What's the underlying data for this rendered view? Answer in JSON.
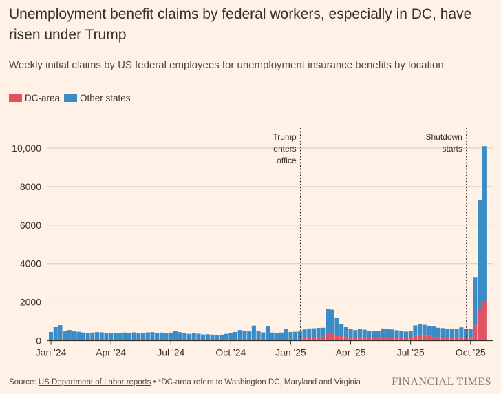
{
  "title": "Unemployment benefit claims by federal workers, especially in DC, have risen under Trump",
  "subtitle": "Weekly initial claims by US federal employees for unemployment insurance benefits by location",
  "legend": [
    {
      "label": "DC-area",
      "color": "#e3535f"
    },
    {
      "label": "Other states",
      "color": "#3a8bc6"
    }
  ],
  "footer": {
    "source_label": "Source: ",
    "source_link": "US Department of Labor reports",
    "note": " • *DC-area refers to Washington DC, Maryland and Virginia",
    "brand": "FINANCIAL TIMES"
  },
  "colors": {
    "dc": "#e3535f",
    "other": "#3a8bc6",
    "grid": "#d6cbbf",
    "axis": "#33302e",
    "text": "#33302e"
  },
  "chart_data": {
    "type": "bar",
    "stacked": true,
    "title": "Weekly initial claims by US federal employees for unemployment insurance benefits by location",
    "xlabel": "",
    "ylabel": "",
    "ylim": [
      0,
      10500
    ],
    "y_ticks": [
      0,
      2000,
      4000,
      6000,
      8000,
      10000
    ],
    "y_tick_labels": [
      "0",
      "2000",
      "4000",
      "6000",
      "8000",
      "10,000"
    ],
    "x_ticks": [
      {
        "label": "Jan '24",
        "week_index": 0
      },
      {
        "label": "Apr '24",
        "week_index": 13
      },
      {
        "label": "Jul '24",
        "week_index": 26
      },
      {
        "label": "Oct '24",
        "week_index": 39
      },
      {
        "label": "Jan '25",
        "week_index": 52
      },
      {
        "label": "Apr '25",
        "week_index": 65
      },
      {
        "label": "Jul '25",
        "week_index": 78
      },
      {
        "label": "Oct '25",
        "week_index": 91
      }
    ],
    "annotations": [
      {
        "lines": [
          "Trump",
          "enters",
          "office"
        ],
        "week_index": 54.5
      },
      {
        "lines": [
          "Shutdown",
          "starts"
        ],
        "week_index": 90.5
      }
    ],
    "series": [
      {
        "name": "DC-area",
        "values": [
          0,
          0,
          0,
          0,
          0,
          0,
          0,
          0,
          0,
          0,
          0,
          0,
          0,
          0,
          0,
          0,
          0,
          0,
          0,
          0,
          0,
          0,
          0,
          0,
          0,
          0,
          0,
          0,
          0,
          0,
          0,
          0,
          0,
          0,
          0,
          0,
          0,
          0,
          0,
          0,
          0,
          0,
          0,
          0,
          0,
          0,
          0,
          0,
          0,
          0,
          0,
          0,
          0,
          0,
          0,
          150,
          150,
          180,
          180,
          200,
          380,
          360,
          300,
          250,
          200,
          180,
          150,
          170,
          160,
          150,
          150,
          160,
          150,
          140,
          150,
          140,
          130,
          140,
          150,
          300,
          280,
          260,
          240,
          200,
          180,
          150,
          140,
          130,
          150,
          170,
          160,
          170,
          800,
          1650,
          2000
        ]
      },
      {
        "name": "Other states",
        "values": [
          450,
          700,
          800,
          480,
          550,
          480,
          460,
          420,
          400,
          420,
          440,
          430,
          410,
          380,
          380,
          400,
          420,
          410,
          430,
          400,
          410,
          430,
          440,
          400,
          420,
          380,
          420,
          500,
          440,
          380,
          350,
          380,
          360,
          320,
          330,
          310,
          300,
          310,
          350,
          400,
          450,
          550,
          500,
          480,
          780,
          500,
          430,
          750,
          420,
          380,
          420,
          620,
          450,
          460,
          480,
          430,
          480,
          460,
          480,
          470,
          1280,
          1250,
          900,
          620,
          500,
          430,
          400,
          420,
          410,
          360,
          350,
          330,
          480,
          460,
          430,
          400,
          360,
          330,
          350,
          490,
          560,
          560,
          530,
          530,
          490,
          500,
          450,
          480,
          470,
          520,
          450,
          450,
          2500,
          5650,
          8100
        ]
      }
    ]
  }
}
